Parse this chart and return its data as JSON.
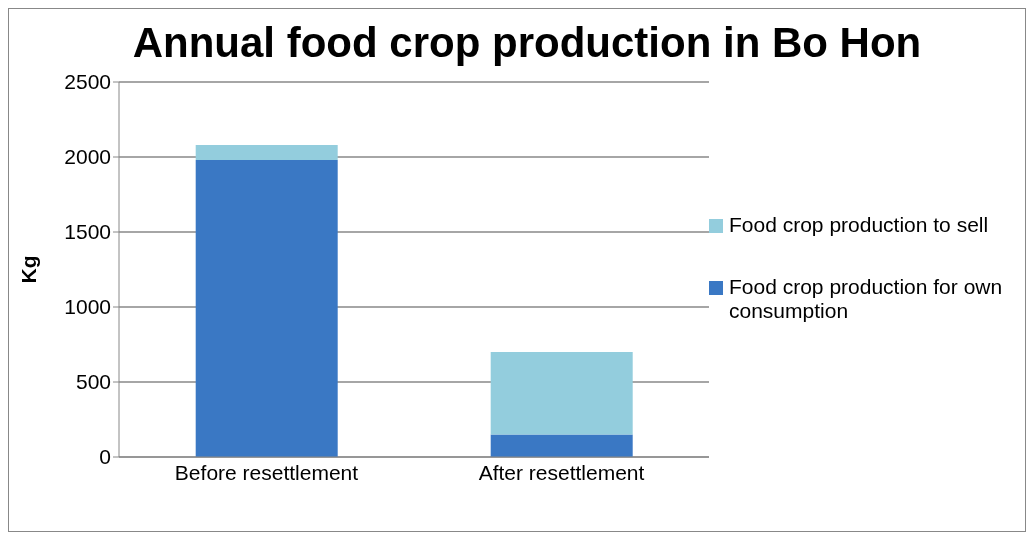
{
  "chart_data": {
    "type": "bar",
    "title": "Annual food crop production in Bo Hon",
    "ylabel": "Kg",
    "categories": [
      "Before resettlement",
      "After resettlement"
    ],
    "series": [
      {
        "name": "Food crop production for own consumption",
        "color": "#3a78c4",
        "values": [
          1980,
          150
        ]
      },
      {
        "name": "Food crop production to sell",
        "color": "#93cddd",
        "values": [
          100,
          550
        ]
      }
    ],
    "stacked": true,
    "ylim": [
      0,
      2500
    ],
    "yticks": [
      0,
      500,
      1000,
      1500,
      2000,
      2500
    ],
    "grid": "y",
    "legend": "right"
  }
}
